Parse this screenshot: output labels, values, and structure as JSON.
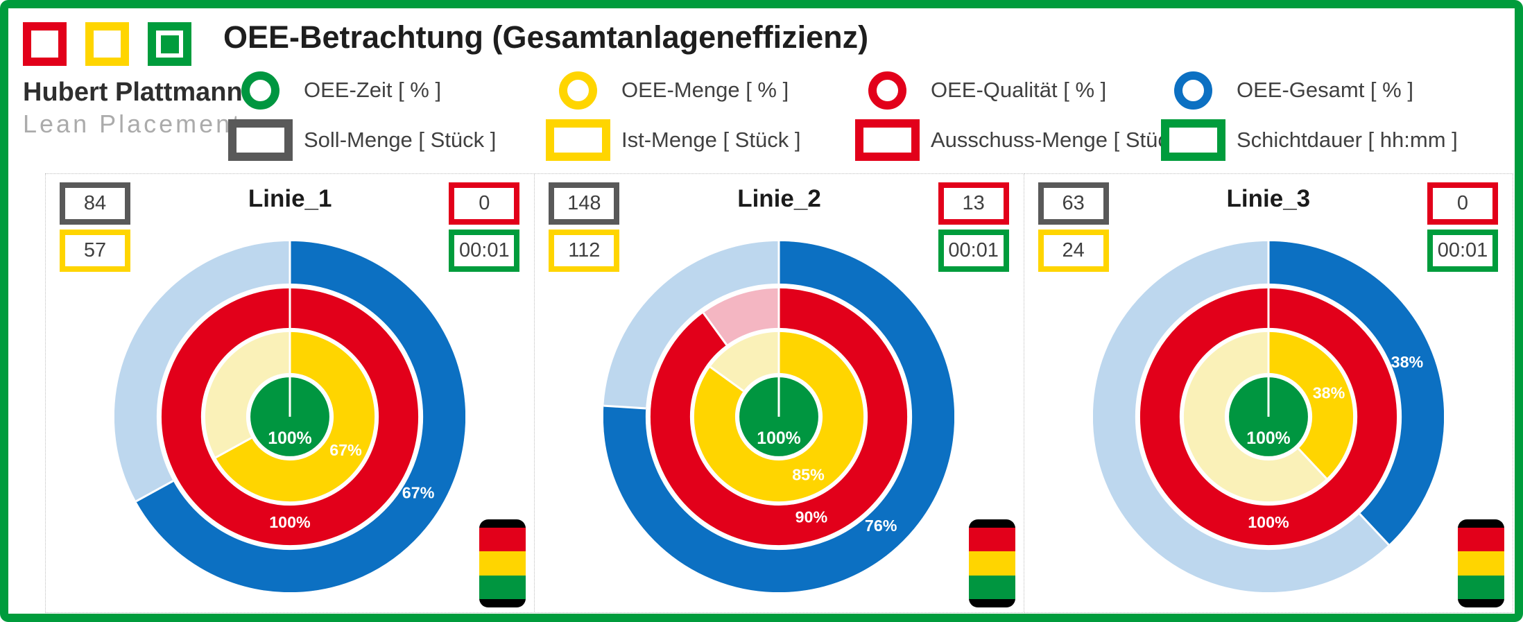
{
  "title": "OEE-Betrachtung (Gesamtanlageneffizienz)",
  "logo": {
    "name": "Hubert Plattmann",
    "tagline": "Lean Placement",
    "squares": [
      "#E2001A",
      "#FFD500",
      "#009C3C"
    ]
  },
  "legend": {
    "rings": [
      {
        "label": "OEE-Zeit [ % ]",
        "color": "#009640"
      },
      {
        "label": "OEE-Menge [ % ]",
        "color": "#FFD500"
      },
      {
        "label": "OEE-Qualität [ % ]",
        "color": "#E2001A"
      },
      {
        "label": "OEE-Gesamt [ % ]",
        "color": "#0C70C2"
      }
    ],
    "boxes": [
      {
        "label": "Soll-Menge [ Stück ]",
        "color": "#595959"
      },
      {
        "label": "Ist-Menge [ Stück ]",
        "color": "#FFD500"
      },
      {
        "label": "Ausschuss-Menge [ Stück ]",
        "color": "#E2001A"
      },
      {
        "label": "Schichtdauer [ hh:mm ]",
        "color": "#009C3C"
      }
    ]
  },
  "colors": {
    "green": "#009640",
    "green_frame": "#009C3C",
    "gold": "#FFD500",
    "gold_light": "#FAF1B8",
    "red": "#E2001A",
    "red_light": "#F4B6C2",
    "blue": "#0C70C2",
    "blue_light": "#BDD7EE",
    "gray": "#595959"
  },
  "chart_data": [
    {
      "type": "pie",
      "variant": "concentric-donut",
      "title": "Linie_1",
      "boxes": {
        "soll_menge": "84",
        "ist_menge": "57",
        "ausschuss_menge": "0",
        "schichtdauer": "00:01"
      },
      "rings": [
        {
          "name": "OEE-Gesamt [ % ]",
          "percent": 67
        },
        {
          "name": "OEE-Qualität [ % ]",
          "percent": 100
        },
        {
          "name": "OEE-Menge [ % ]",
          "percent": 67
        },
        {
          "name": "OEE-Zeit [ % ]",
          "percent": 100
        }
      ]
    },
    {
      "type": "pie",
      "variant": "concentric-donut",
      "title": "Linie_2",
      "boxes": {
        "soll_menge": "148",
        "ist_menge": "112",
        "ausschuss_menge": "13",
        "schichtdauer": "00:01"
      },
      "rings": [
        {
          "name": "OEE-Gesamt [ % ]",
          "percent": 76
        },
        {
          "name": "OEE-Qualität [ % ]",
          "percent": 90
        },
        {
          "name": "OEE-Menge [ % ]",
          "percent": 85
        },
        {
          "name": "OEE-Zeit [ % ]",
          "percent": 100
        }
      ]
    },
    {
      "type": "pie",
      "variant": "concentric-donut",
      "title": "Linie_3",
      "boxes": {
        "soll_menge": "63",
        "ist_menge": "24",
        "ausschuss_menge": "0",
        "schichtdauer": "00:01"
      },
      "rings": [
        {
          "name": "OEE-Gesamt [ % ]",
          "percent": 38
        },
        {
          "name": "OEE-Qualität [ % ]",
          "percent": 100
        },
        {
          "name": "OEE-Menge [ % ]",
          "percent": 38
        },
        {
          "name": "OEE-Zeit [ % ]",
          "percent": 100
        }
      ]
    }
  ]
}
